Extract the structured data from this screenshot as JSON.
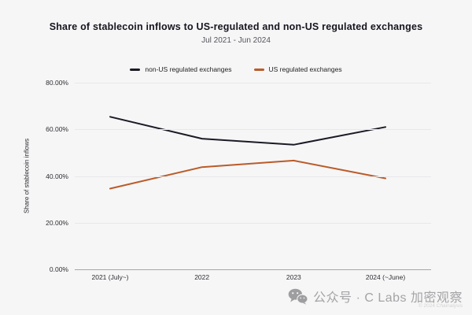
{
  "title": "Share of stablecoin inflows to US-regulated and non-US regulated exchanges",
  "subtitle": "Jul 2021 - Jun 2024",
  "legend": [
    {
      "label": "non-US regulated exchanges",
      "color": "#1b1b26"
    },
    {
      "label": "US regulated exchanges",
      "color": "#bb5b28"
    }
  ],
  "chart_data": {
    "type": "line",
    "title": "Share of stablecoin inflows to US-regulated and non-US regulated exchanges",
    "subtitle": "Jul 2021 - Jun 2024",
    "categories": [
      "2021 (July~)",
      "2022",
      "2023",
      "2024 (~June)"
    ],
    "series": [
      {
        "name": "non-US regulated exchanges",
        "color": "#1b1b26",
        "values": [
          65.4,
          56.0,
          53.4,
          61.0
        ]
      },
      {
        "name": "US regulated exchanges",
        "color": "#bb5b28",
        "values": [
          34.6,
          43.8,
          46.6,
          39.0
        ]
      }
    ],
    "xlabel": "",
    "ylabel": "Share of stablecoin inflows",
    "ylim": [
      0,
      80
    ],
    "y_ticks": [
      0,
      20,
      40,
      60,
      80
    ],
    "y_tick_labels": [
      "0.00%",
      "20.00%",
      "40.00%",
      "60.00%",
      "80.00%"
    ],
    "grid": true,
    "legend_position": "top"
  },
  "watermark": {
    "icon": "wechat-icon",
    "text": "公众号 · C Labs 加密观察",
    "copyright": "© 2024 Chainalysis"
  }
}
